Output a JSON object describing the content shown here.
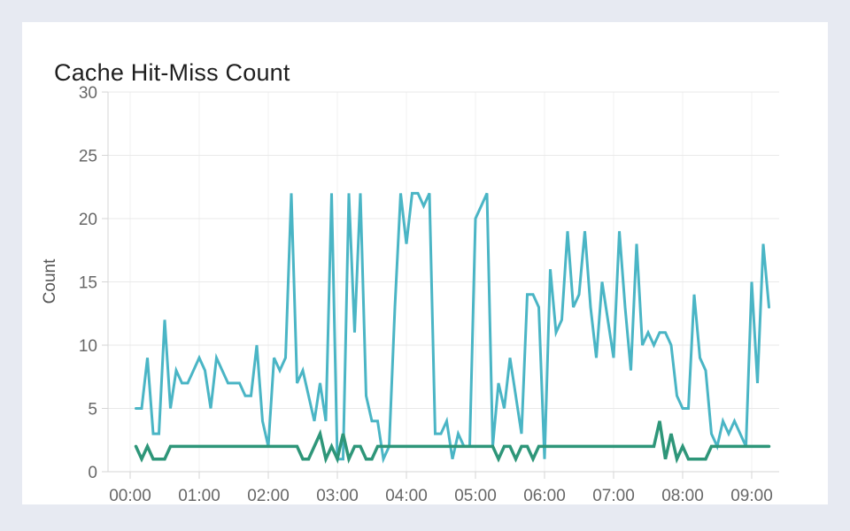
{
  "page": {
    "background_color": "#e7eaf2",
    "card_color": "#ffffff"
  },
  "card": {
    "title": "Cache Hit-Miss Count"
  },
  "chart_data": {
    "type": "line",
    "title": "Cache Hit-Miss Count",
    "xlabel": "",
    "ylabel": "Count",
    "ylim": [
      0,
      30
    ],
    "yticks": [
      0,
      5,
      10,
      15,
      20,
      25,
      30
    ],
    "xticks": [
      "00:00",
      "01:00",
      "02:00",
      "03:00",
      "04:00",
      "05:00",
      "06:00",
      "07:00",
      "08:00",
      "09:00"
    ],
    "x_start_minutes": 5,
    "x_interval_minutes": 5,
    "grid": true,
    "legend": "none",
    "style": {
      "hgrid": "#e9e9e9",
      "vgrid": "#f0f0f0",
      "axis": "#d6d6d6",
      "tick_color": "#676767",
      "ylabel_color": "#555555",
      "title_color": "#1e1e1e"
    },
    "series": [
      {
        "name": "series-teal",
        "color": "#4ab5c5",
        "values": [
          5,
          5,
          9,
          3,
          3,
          12,
          5,
          8,
          7,
          7,
          8,
          9,
          8,
          5,
          9,
          8,
          7,
          7,
          7,
          6,
          6,
          10,
          4,
          2,
          9,
          8,
          9,
          22,
          7,
          8,
          6,
          4,
          7,
          4,
          22,
          1,
          1,
          22,
          11,
          22,
          6,
          4,
          4,
          1,
          2,
          13,
          22,
          18,
          22,
          22,
          21,
          22,
          3,
          3,
          4,
          1,
          3,
          2,
          2,
          20,
          21,
          22,
          2,
          7,
          5,
          9,
          6,
          3,
          14,
          14,
          13,
          1,
          16,
          11,
          12,
          19,
          13,
          14,
          19,
          13,
          9,
          15,
          12,
          9,
          19,
          13,
          8,
          18,
          10,
          11,
          10,
          11,
          11,
          10,
          6,
          5,
          5,
          14,
          9,
          8,
          3,
          2,
          4,
          3,
          4,
          3,
          2,
          15,
          7,
          18,
          13
        ]
      },
      {
        "name": "series-green",
        "color": "#2e9679",
        "values": [
          2,
          1,
          2,
          1,
          1,
          1,
          2,
          2,
          2,
          2,
          2,
          2,
          2,
          2,
          2,
          2,
          2,
          2,
          2,
          2,
          2,
          2,
          2,
          2,
          2,
          2,
          2,
          2,
          2,
          1,
          1,
          2,
          3,
          1,
          2,
          1,
          3,
          1,
          2,
          2,
          1,
          1,
          2,
          2,
          2,
          2,
          2,
          2,
          2,
          2,
          2,
          2,
          2,
          2,
          2,
          2,
          2,
          2,
          2,
          2,
          2,
          2,
          2,
          1,
          2,
          2,
          1,
          2,
          2,
          1,
          2,
          2,
          2,
          2,
          2,
          2,
          2,
          2,
          2,
          2,
          2,
          2,
          2,
          2,
          2,
          2,
          2,
          2,
          2,
          2,
          2,
          4,
          1,
          3,
          1,
          2,
          1,
          1,
          1,
          1,
          2,
          2,
          2,
          2,
          2,
          2,
          2,
          2,
          2,
          2,
          2
        ]
      }
    ]
  }
}
